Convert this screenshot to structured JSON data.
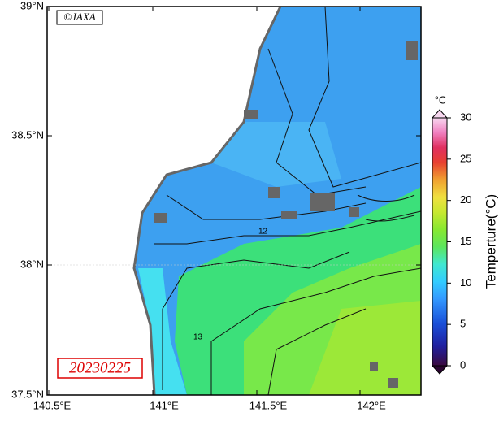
{
  "map": {
    "credit": "©JAXA",
    "date": "20230225",
    "x_ticks": [
      "140.5°E",
      "141°E",
      "141.5°E",
      "142°E"
    ],
    "y_ticks": [
      "39°N",
      "38.5°N",
      "38°N",
      "37.5°N"
    ],
    "contour_labels": [
      "12",
      "13"
    ],
    "colorbar": {
      "unit": "°C",
      "label": "Temperture(°C)",
      "ticks": [
        0,
        5,
        10,
        15,
        20,
        25,
        30
      ]
    }
  }
}
